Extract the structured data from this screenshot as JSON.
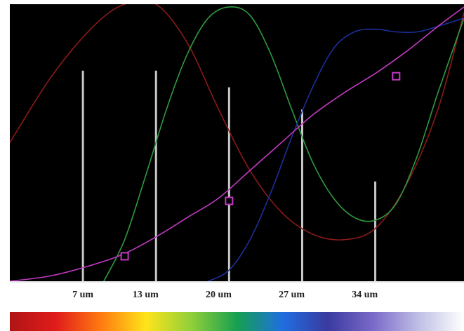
{
  "chart_data": {
    "type": "line",
    "xlabel": "",
    "ylabel": "",
    "xlim": [
      0,
      43.5
    ],
    "ylim": [
      0,
      1
    ],
    "grid": false,
    "background": "#000000",
    "tick_labels": [
      {
        "x": 7,
        "text": "7 um"
      },
      {
        "x": 13,
        "text": "13 um"
      },
      {
        "x": 20,
        "text": "20 um"
      },
      {
        "x": 27,
        "text": "27 um"
      },
      {
        "x": 34,
        "text": "34 um"
      }
    ],
    "bars": {
      "color": "#c8c8c8",
      "points": [
        {
          "x": 7,
          "y": 0.76
        },
        {
          "x": 14,
          "y": 0.76
        },
        {
          "x": 21,
          "y": 0.7
        },
        {
          "x": 28,
          "y": 0.62
        },
        {
          "x": 35,
          "y": 0.36
        }
      ]
    },
    "series": [
      {
        "color": "#8b1a1a",
        "x": [
          0,
          4,
          8,
          11,
          14,
          17,
          20,
          23,
          26,
          29,
          32,
          35,
          38,
          41,
          43.5
        ],
        "y": [
          0.5,
          0.74,
          0.92,
          1.0,
          1.0,
          0.86,
          0.62,
          0.4,
          0.25,
          0.17,
          0.15,
          0.19,
          0.35,
          0.62,
          0.97
        ]
      },
      {
        "color": "#2f9a3f",
        "x": [
          9,
          11,
          13,
          15,
          17,
          19,
          21,
          23,
          25,
          27,
          29,
          31,
          33,
          35,
          37,
          39,
          41,
          43.5
        ],
        "y": [
          0.0,
          0.15,
          0.38,
          0.62,
          0.82,
          0.95,
          0.99,
          0.96,
          0.82,
          0.62,
          0.43,
          0.3,
          0.23,
          0.22,
          0.28,
          0.45,
          0.68,
          0.95
        ]
      },
      {
        "color": "#1c2f9a",
        "x": [
          19,
          21,
          23,
          25,
          27,
          29,
          31,
          33,
          35,
          37,
          39,
          41,
          43.5
        ],
        "y": [
          0.0,
          0.04,
          0.15,
          0.32,
          0.52,
          0.7,
          0.84,
          0.9,
          0.91,
          0.9,
          0.9,
          0.92,
          0.95
        ]
      },
      {
        "color": "#c23ac2",
        "x": [
          0,
          4,
          8,
          11,
          14,
          17,
          20,
          23,
          26,
          29,
          32,
          35,
          38,
          41,
          43.5
        ],
        "y": [
          0.0,
          0.02,
          0.06,
          0.1,
          0.16,
          0.23,
          0.3,
          0.4,
          0.5,
          0.6,
          0.68,
          0.75,
          0.83,
          0.92,
          0.99
        ],
        "markers": [
          {
            "x": 11,
            "y": 0.09
          },
          {
            "x": 21,
            "y": 0.29
          },
          {
            "x": 37,
            "y": 0.74
          }
        ]
      }
    ],
    "colorbar": [
      "#b01515",
      "#e01b1b",
      "#ff7a10",
      "#ffe41a",
      "#8fcf3a",
      "#16a050",
      "#1f6fe0",
      "#3a3aa0",
      "#7a6ac8",
      "#bfbfe6",
      "#ffffff"
    ]
  }
}
